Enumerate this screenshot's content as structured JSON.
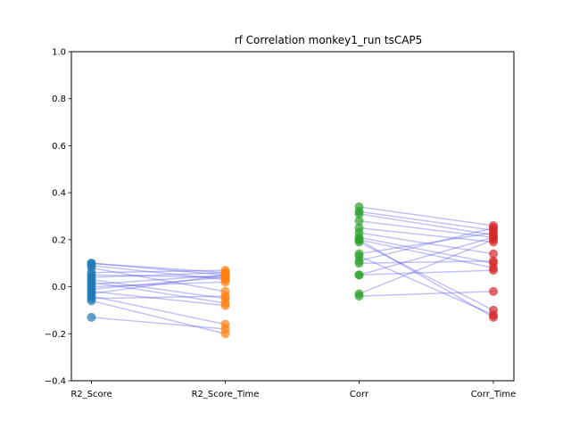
{
  "chart_data": {
    "type": "scatter",
    "title": "rf Correlation monkey1_run tsCAP5",
    "xlabel": "",
    "ylabel": "",
    "categories": [
      "R2_Score",
      "R2_Score_Time",
      "Corr",
      "Corr_Time"
    ],
    "ylim": [
      -0.4,
      1.0
    ],
    "yticks": [
      -0.4,
      -0.2,
      0.0,
      0.2,
      0.4,
      0.6,
      0.8,
      1.0
    ],
    "ytick_labels": [
      "−0.4",
      "−0.2",
      "0.0",
      "0.2",
      "0.4",
      "0.6",
      "0.8",
      "1.0"
    ],
    "grid": false,
    "legend": "none",
    "series_colors": [
      "#1f77b4",
      "#ff7f0e",
      "#2ca02c",
      "#d62728"
    ],
    "line_color": "#5050e8",
    "pairs": [
      {
        "a": [
          0.1,
          0.06
        ],
        "b": [
          0.34,
          0.26
        ]
      },
      {
        "a": [
          0.1,
          0.05
        ],
        "b": [
          0.32,
          0.24
        ]
      },
      {
        "a": [
          0.09,
          0.03
        ],
        "b": [
          0.31,
          0.22
        ]
      },
      {
        "a": [
          0.08,
          -0.02
        ],
        "b": [
          0.28,
          0.21
        ]
      },
      {
        "a": [
          0.06,
          0.07
        ],
        "b": [
          0.25,
          0.19
        ]
      },
      {
        "a": [
          0.05,
          0.04
        ],
        "b": [
          0.23,
          0.14
        ]
      },
      {
        "a": [
          0.04,
          0.06
        ],
        "b": [
          0.21,
          0.1
        ]
      },
      {
        "a": [
          0.03,
          -0.05
        ],
        "b": [
          0.2,
          0.08
        ]
      },
      {
        "a": [
          0.02,
          -0.07
        ],
        "b": [
          0.19,
          -0.1
        ]
      },
      {
        "a": [
          0.01,
          0.05
        ],
        "b": [
          0.14,
          0.23
        ]
      },
      {
        "a": [
          0.0,
          0.02
        ],
        "b": [
          0.13,
          -0.12
        ]
      },
      {
        "a": [
          -0.01,
          0.04
        ],
        "b": [
          0.11,
          0.25
        ]
      },
      {
        "a": [
          -0.02,
          -0.08
        ],
        "b": [
          0.1,
          0.11
        ]
      },
      {
        "a": [
          -0.03,
          0.05
        ],
        "b": [
          0.05,
          0.21
        ]
      },
      {
        "a": [
          -0.04,
          -0.16
        ],
        "b": [
          0.05,
          0.07
        ]
      },
      {
        "a": [
          -0.05,
          -0.04
        ],
        "b": [
          -0.03,
          0.2
        ]
      },
      {
        "a": [
          -0.06,
          -0.2
        ],
        "b": [
          -0.04,
          -0.02
        ]
      },
      {
        "a": [
          -0.13,
          -0.18
        ],
        "b": [
          0.2,
          -0.13
        ]
      }
    ]
  }
}
